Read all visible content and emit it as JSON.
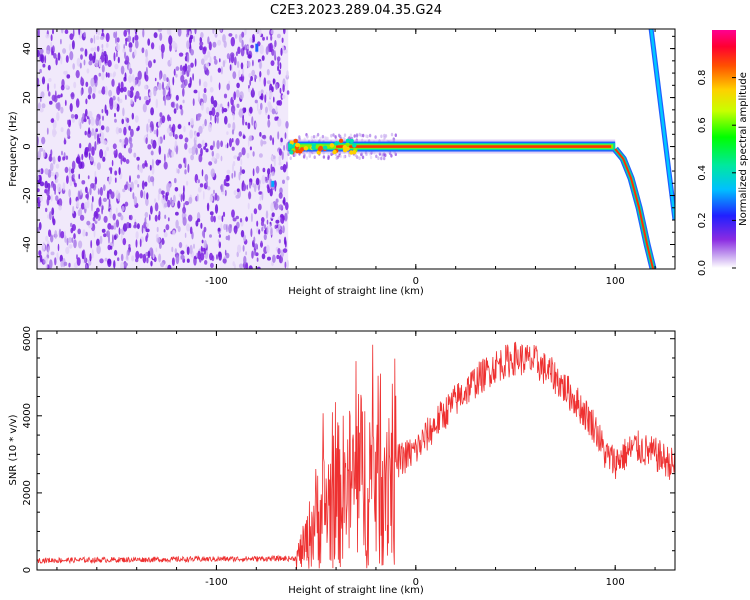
{
  "title": "C2E3.2023.289.04.35.G24",
  "chart_data": [
    {
      "type": "heatmap",
      "xlabel": "Height of straight line (km)",
      "ylabel": "Frequency (Hz)",
      "xlim": [
        -190,
        130
      ],
      "ylim": [
        -50,
        48
      ],
      "xticks": [
        -100,
        0,
        100
      ],
      "yticks": [
        -40,
        -20,
        0,
        20,
        40
      ],
      "colorbar": {
        "label": "Normalized spectral amplitude",
        "range": [
          0.0,
          1.0
        ],
        "ticks": [
          0.0,
          0.2,
          0.4,
          0.6,
          0.8
        ]
      },
      "features": {
        "noise_region_x": [
          -190,
          -64
        ],
        "tone_region_x": [
          -64,
          100
        ],
        "tone_frequency_hz": 0,
        "dropoff_curve": [
          [
            100,
            -1
          ],
          [
            104,
            -5
          ],
          [
            108,
            -13
          ],
          [
            112,
            -25
          ],
          [
            116,
            -40
          ],
          [
            119,
            -50
          ]
        ],
        "rising_line": [
          [
            118,
            48
          ],
          [
            130,
            -30
          ]
        ]
      }
    },
    {
      "type": "line",
      "xlabel": "Height of straight line (km)",
      "ylabel": "SNR (10 * v/v)",
      "xlim": [
        -190,
        130
      ],
      "ylim": [
        0,
        6200
      ],
      "xticks": [
        -100,
        0,
        100
      ],
      "yticks": [
        0,
        2000,
        4000,
        6000
      ],
      "color": "#ee3030",
      "envelope": {
        "x": [
          -190,
          -60,
          -55,
          -50,
          -40,
          -30,
          -20,
          -10,
          0,
          10,
          20,
          30,
          40,
          50,
          60,
          70,
          80,
          90,
          95,
          100,
          110,
          120,
          130
        ],
        "y": [
          250,
          300,
          700,
          1400,
          1900,
          2300,
          2500,
          2800,
          3100,
          3800,
          4400,
          4900,
          5300,
          5500,
          5400,
          5000,
          4400,
          3700,
          3000,
          2800,
          3200,
          3000,
          2700
        ]
      }
    }
  ]
}
